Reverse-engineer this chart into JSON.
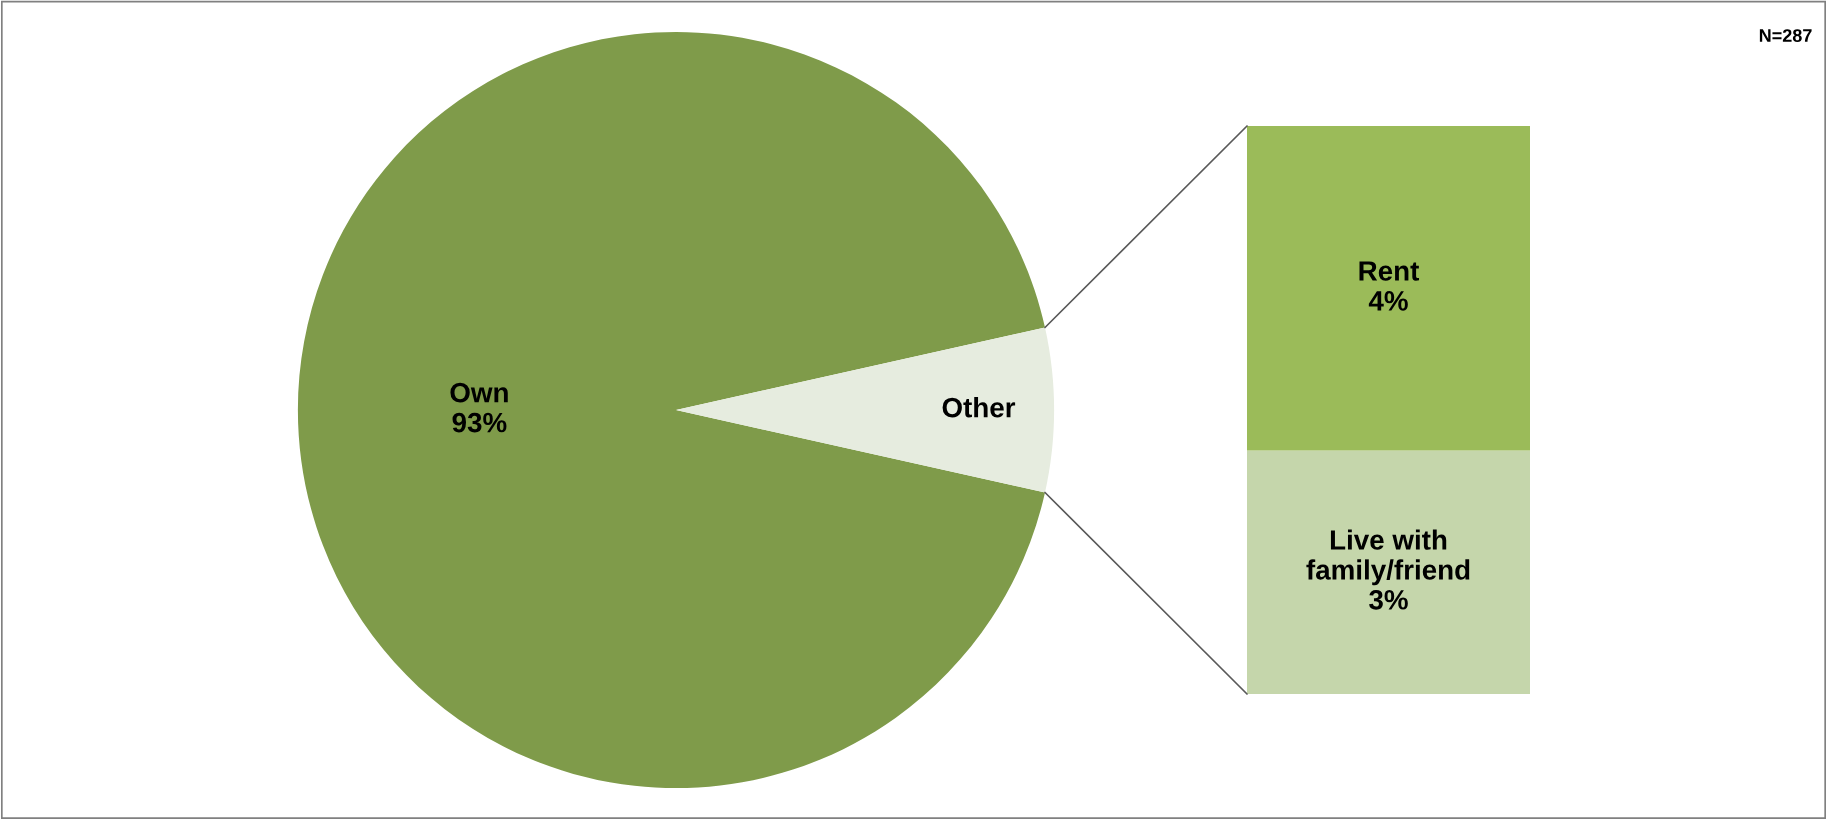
{
  "chart_data": [
    {
      "type": "pie",
      "categories": [
        "Own",
        "Other"
      ],
      "values": [
        93,
        7
      ],
      "colors": [
        "#7f9b4a",
        "#e6ecdf"
      ],
      "value_labels": [
        "93%",
        null
      ],
      "annotations": [
        "N=287"
      ]
    },
    {
      "type": "bar",
      "stacked": true,
      "categories": [
        null
      ],
      "series": [
        {
          "name": "Live with family/friend",
          "color": "#c5d6ab",
          "values": [
            3
          ],
          "value_labels": [
            "3%"
          ]
        },
        {
          "name": "Rent",
          "color": "#9bbb59",
          "values": [
            4
          ],
          "value_labels": [
            "4%"
          ]
        }
      ]
    }
  ]
}
